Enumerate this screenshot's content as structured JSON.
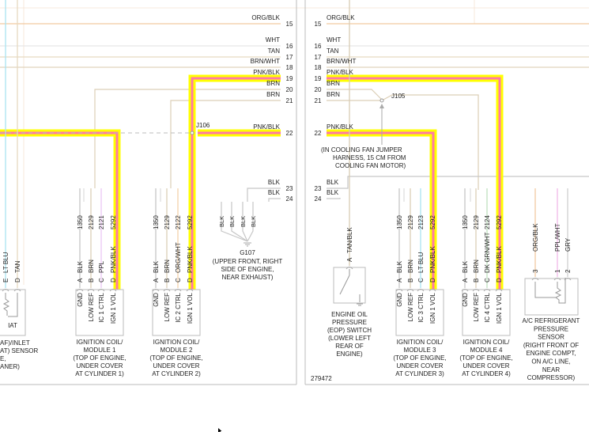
{
  "diagram_id": "279472",
  "wire_colors": {
    "ORG/BLK": "#f2c9a0",
    "WHT": "#e6e6e6",
    "TAN": "#e6d9c0",
    "BRN/WHT": "#e0d3bc",
    "BRN": "#dccfb6",
    "BLK": "#c6c6c6",
    "PPL": "#ecc6f4",
    "ORG/WHT": "#f4d2aa",
    "LT BLU": "#a9e3f2",
    "DK GRN/WHT": "#bfe0bf",
    "TAN/BLK": "#d8ccb4",
    "PPL/WHT": "#f0b8e8",
    "GRY": "#d0d0d0",
    "PNK/BLK": "#ff7aa6",
    "highlight": "#ffff00"
  },
  "left_connector": {
    "pins": [
      {
        "num": "15",
        "wire": "ORG/BLK"
      },
      {
        "num": "16",
        "wire": "WHT"
      },
      {
        "num": "17",
        "wire": "TAN"
      },
      {
        "num": "18",
        "wire": "BRN/WHT"
      },
      {
        "num": "19",
        "wire": "PNK/BLK"
      },
      {
        "num": "20",
        "wire": "BRN"
      },
      {
        "num": "21",
        "wire": "BRN"
      },
      {
        "num": "22",
        "wire": "PNK/BLK"
      },
      {
        "num": "23",
        "wire": "BLK"
      },
      {
        "num": "24",
        "wire": "BLK"
      }
    ]
  },
  "right_connector": {
    "pins": [
      {
        "num": "15",
        "wire": "ORG/BLK"
      },
      {
        "num": "16",
        "wire": "WHT"
      },
      {
        "num": "17",
        "wire": "TAN"
      },
      {
        "num": "18",
        "wire": "BRN/WHT"
      },
      {
        "num": "19",
        "wire": "PNK/BLK"
      },
      {
        "num": "20",
        "wire": "BRN"
      },
      {
        "num": "21",
        "wire": "BRN"
      },
      {
        "num": "22",
        "wire": "PNK/BLK"
      },
      {
        "num": "23",
        "wire": "BLK"
      },
      {
        "num": "24",
        "wire": "BLK"
      }
    ]
  },
  "splices": {
    "j106": {
      "id": "J106"
    },
    "j105": {
      "id": "J105",
      "note": [
        "(IN COOLING FAN JUMPER",
        "HARNESS, 15 CM FROM",
        "COOLING FAN MOTOR)"
      ]
    }
  },
  "ground": {
    "id": "G107",
    "wires": [
      "BLK",
      "BLK",
      "BLK",
      "BLK"
    ],
    "location": [
      "(UPPER FRONT, RIGHT",
      "SIDE OF ENGINE,",
      "NEAR EXHAUST)"
    ]
  },
  "components": [
    {
      "key": "iat",
      "inner": [
        "IAT"
      ],
      "pins": [
        {
          "pin": "E",
          "wire": "LT BLU"
        },
        {
          "pin": "D",
          "wire": "TAN"
        }
      ],
      "label": [
        "AF)/INLET",
        "AT) SENSOR",
        "E,",
        "ANER)"
      ]
    },
    {
      "key": "coil1",
      "pins": [
        {
          "pin": "A",
          "wire": "BLK",
          "circuit": "1350",
          "func": "GND"
        },
        {
          "pin": "B",
          "wire": "BRN",
          "circuit": "2129",
          "func": "LOW REF"
        },
        {
          "pin": "C",
          "wire": "PPL",
          "circuit": "2121",
          "func": "IC 1 CTRL"
        },
        {
          "pin": "D",
          "wire": "PNK/BLK",
          "circuit": "5292",
          "func": "IGN 1 VOL"
        }
      ],
      "label": [
        "IGNITION COIL/",
        "MODULE 1",
        "(TOP OF ENGINE,",
        "UNDER COVER",
        "AT CYLINDER 1)"
      ]
    },
    {
      "key": "coil2",
      "pins": [
        {
          "pin": "A",
          "wire": "BLK",
          "circuit": "1350",
          "func": "GND"
        },
        {
          "pin": "B",
          "wire": "BRN",
          "circuit": "2129",
          "func": "LOW REF"
        },
        {
          "pin": "C",
          "wire": "ORG/WHT",
          "circuit": "2122",
          "func": "IC 2 CTRL"
        },
        {
          "pin": "D",
          "wire": "PNK/BLK",
          "circuit": "5292",
          "func": "IGN 1 VOL"
        }
      ],
      "label": [
        "IGNITION COIL/",
        "MODULE 2",
        "(TOP OF ENGINE,",
        "UNDER COVER",
        "AT CYLINDER 2)"
      ]
    },
    {
      "key": "eop",
      "pins": [
        {
          "pin": "A",
          "wire": "TAN/BLK"
        }
      ],
      "label": [
        "ENGINE OIL",
        "PRESSURE",
        "(EOP) SWITCH",
        "(LOWER LEFT",
        "REAR OF",
        "ENGINE)"
      ]
    },
    {
      "key": "coil3",
      "pins": [
        {
          "pin": "A",
          "wire": "BLK",
          "circuit": "1350",
          "func": "GND"
        },
        {
          "pin": "B",
          "wire": "BRN",
          "circuit": "2129",
          "func": "LOW REF"
        },
        {
          "pin": "C",
          "wire": "LT BLU",
          "circuit": "2123",
          "func": "IC 3 CTRL"
        },
        {
          "pin": "D",
          "wire": "PNK/BLK",
          "circuit": "5292",
          "func": "IGN 1 VOL"
        }
      ],
      "label": [
        "IGNITION COIL/",
        "MODULE 3",
        "(TOP OF ENGINE,",
        "UNDER COVER",
        "AT CYLINDER 3)"
      ]
    },
    {
      "key": "coil4",
      "pins": [
        {
          "pin": "A",
          "wire": "BLK",
          "circuit": "1350",
          "func": "GND"
        },
        {
          "pin": "B",
          "wire": "BRN",
          "circuit": "2129",
          "func": "LOW REF"
        },
        {
          "pin": "C",
          "wire": "DK GRN/WHT",
          "circuit": "2124",
          "func": "IC 4 CTRL"
        },
        {
          "pin": "D",
          "wire": "PNK/BLK",
          "circuit": "5292",
          "func": "IGN 1 VOL"
        }
      ],
      "label": [
        "IGNITION COIL/",
        "MODULE 4",
        "(TOP OF ENGINE,",
        "UNDER COVER",
        "AT CYLINDER 4)"
      ]
    },
    {
      "key": "ac",
      "pins": [
        {
          "pin": "3",
          "wire": "ORG/BLK"
        },
        {
          "pin": "1",
          "wire": "PPL/WHT"
        },
        {
          "pin": "2",
          "wire": "GRY"
        }
      ],
      "label": [
        "A/C REFRIGERANT",
        "PRESSURE",
        "SENSOR",
        "(RIGHT FRONT OF",
        "ENGINE COMPT,",
        "ON A/C LINE,",
        "NEAR",
        "COMPRESSOR)"
      ]
    }
  ]
}
